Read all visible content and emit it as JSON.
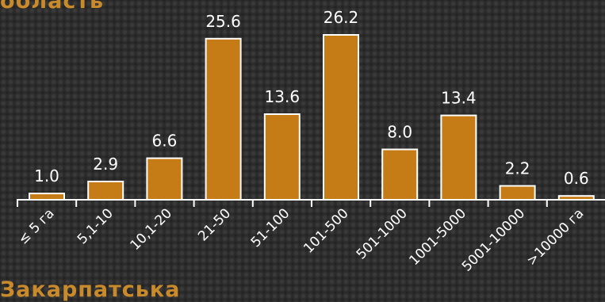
{
  "header": {
    "title_fragment": "область"
  },
  "footer": {
    "title_fragment": "Закарпатська"
  },
  "colors": {
    "bar": "#c57b16",
    "bar_outline": "#ffffff",
    "title": "#c98a2b",
    "text": "#ffffff"
  },
  "chart_data": {
    "type": "bar",
    "title": "",
    "xlabel": "",
    "ylabel": "",
    "categories": [
      "≤ 5 га",
      "5,1-10",
      "10,1-20",
      "21-50",
      "51-100",
      "101-500",
      "501-1000",
      "1001-5000",
      "5001-10000",
      ">10000 га"
    ],
    "values": [
      1.0,
      2.9,
      6.6,
      25.6,
      13.6,
      26.2,
      8.0,
      13.4,
      2.2,
      0.6
    ],
    "value_labels": [
      "1.0",
      "2.9",
      "6.6",
      "25.6",
      "13.6",
      "26.2",
      "8.0",
      "13.4",
      "2.2",
      "0.6"
    ],
    "ylim": [
      0,
      26.2
    ],
    "grid": false,
    "legend": "none"
  }
}
